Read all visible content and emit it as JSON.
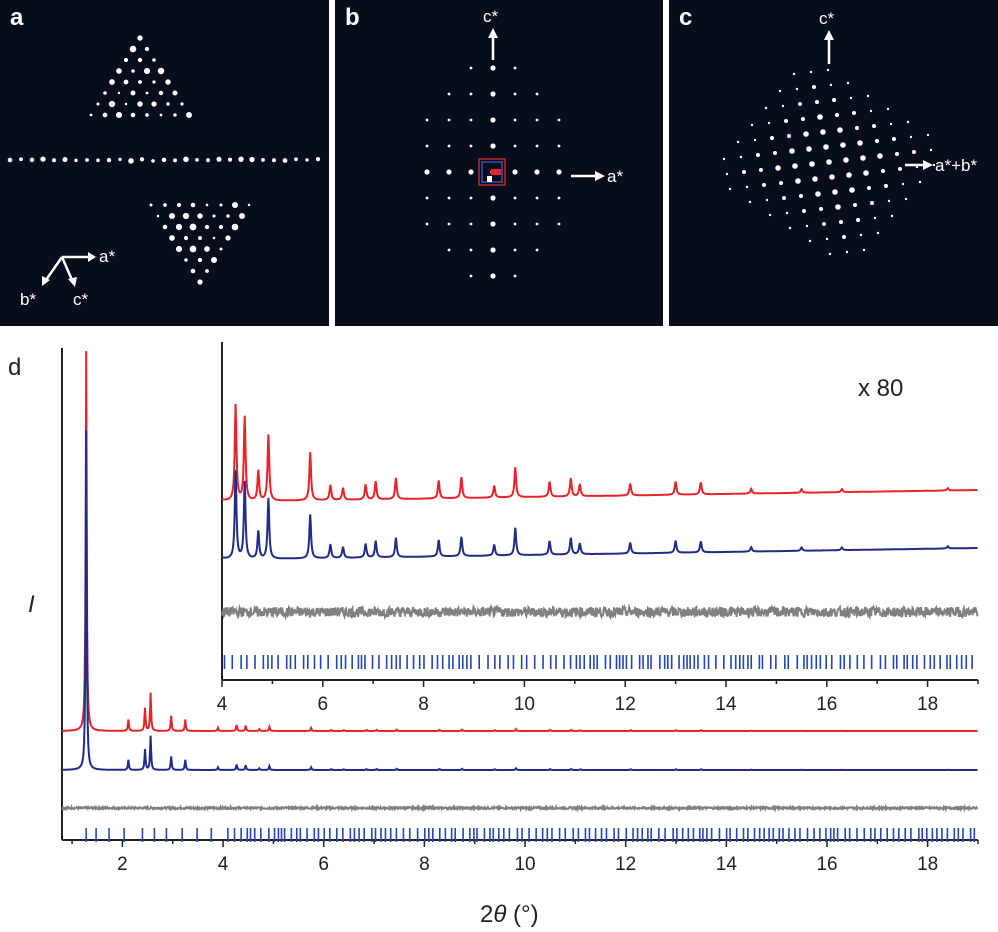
{
  "panels": {
    "a": {
      "label": "a",
      "axes": [
        "a*",
        "b*",
        "c*"
      ]
    },
    "b": {
      "label": "b",
      "axes": [
        "c*",
        "a*"
      ]
    },
    "c": {
      "label": "c",
      "axes": [
        "c*",
        "a*+b*"
      ]
    }
  },
  "chart_data": {
    "type": "line",
    "label": "d",
    "xlabel_prefix": "2",
    "xlabel_symbol": "θ",
    "xlabel_unit": " (°)",
    "ylabel": "I",
    "xlim": [
      0.8,
      19
    ],
    "xticks": [
      2,
      4,
      6,
      8,
      10,
      12,
      14,
      16,
      18
    ],
    "inset": {
      "scale_label": "x 80",
      "xlim": [
        4,
        19
      ],
      "xticks": [
        4,
        6,
        8,
        10,
        12,
        14,
        16,
        18
      ]
    },
    "colors": {
      "observed": "#e8232a",
      "calculated": "#1f2d86",
      "difference": "#808080",
      "reflections": "#2346b5"
    },
    "peaks": [
      {
        "x": 1.28,
        "h": 100
      },
      {
        "x": 2.12,
        "h": 3
      },
      {
        "x": 2.45,
        "h": 6
      },
      {
        "x": 2.56,
        "h": 10
      },
      {
        "x": 2.97,
        "h": 4
      },
      {
        "x": 3.25,
        "h": 3
      },
      {
        "x": 3.9,
        "h": 0.8
      },
      {
        "x": 4.27,
        "h": 1.6
      },
      {
        "x": 4.45,
        "h": 1.4
      },
      {
        "x": 4.72,
        "h": 0.5
      },
      {
        "x": 4.92,
        "h": 1.1
      },
      {
        "x": 5.75,
        "h": 0.8
      },
      {
        "x": 6.15,
        "h": 0.25
      },
      {
        "x": 6.4,
        "h": 0.2
      },
      {
        "x": 6.85,
        "h": 0.25
      },
      {
        "x": 7.05,
        "h": 0.3
      },
      {
        "x": 7.45,
        "h": 0.35
      },
      {
        "x": 8.3,
        "h": 0.3
      },
      {
        "x": 8.75,
        "h": 0.35
      },
      {
        "x": 9.4,
        "h": 0.2
      },
      {
        "x": 9.82,
        "h": 0.5
      },
      {
        "x": 10.5,
        "h": 0.25
      },
      {
        "x": 10.92,
        "h": 0.3
      },
      {
        "x": 11.1,
        "h": 0.2
      },
      {
        "x": 12.1,
        "h": 0.2
      },
      {
        "x": 13.0,
        "h": 0.22
      },
      {
        "x": 13.5,
        "h": 0.2
      },
      {
        "x": 14.5,
        "h": 0.08
      },
      {
        "x": 15.5,
        "h": 0.06
      },
      {
        "x": 16.3,
        "h": 0.05
      },
      {
        "x": 18.4,
        "h": 0.04
      }
    ],
    "series": [
      {
        "key": "observed"
      },
      {
        "key": "calculated"
      },
      {
        "key": "difference"
      },
      {
        "key": "reflections"
      }
    ]
  }
}
